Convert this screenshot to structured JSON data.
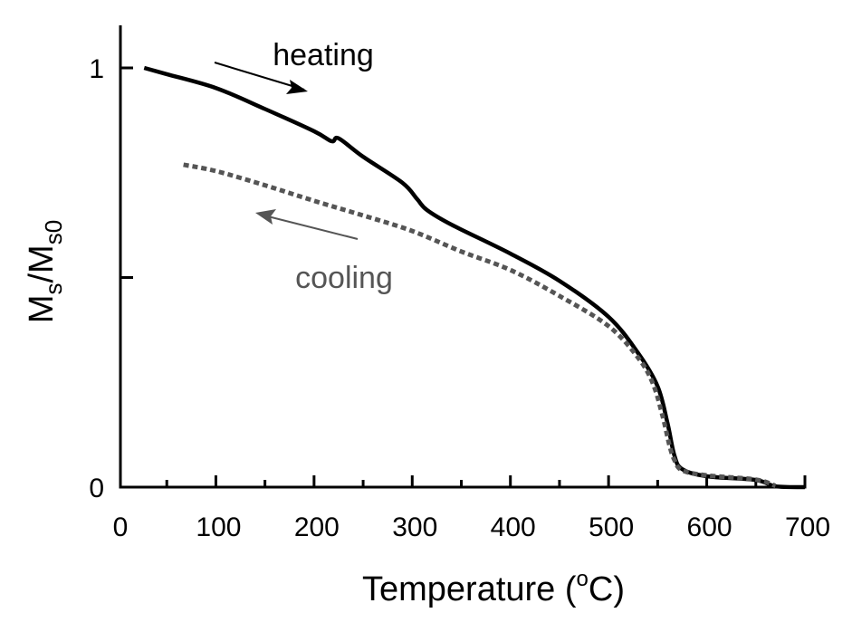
{
  "chart_data": {
    "type": "line",
    "title": "",
    "xlabel": "Temperature (",
    "xlabel_sup": "o",
    "xlabel_unit": "C)",
    "ylabel_parts": {
      "m1": "M",
      "s1": "s",
      "slash": "/M",
      "s2": "s0"
    },
    "xlim": [
      0,
      700
    ],
    "ylim": [
      0,
      1
    ],
    "x_ticks": [
      0,
      100,
      200,
      300,
      400,
      500,
      600,
      700
    ],
    "x_tick_labels": [
      "0",
      "100",
      "200",
      "300",
      "400",
      "500",
      "600",
      "700"
    ],
    "y_ticks": [
      0,
      0.5,
      1
    ],
    "y_tick_labels": [
      "0",
      "",
      "1"
    ],
    "grid": false,
    "series": [
      {
        "name": "heating",
        "color": "#000000",
        "style": "solid",
        "x": [
          27,
          50,
          100,
          150,
          200,
          218,
          225,
          250,
          290,
          305,
          315,
          340,
          400,
          450,
          500,
          530,
          550,
          560,
          567,
          575,
          600,
          650,
          670,
          700
        ],
        "y": [
          1.0,
          0.985,
          0.952,
          0.902,
          0.849,
          0.825,
          0.832,
          0.788,
          0.726,
          0.687,
          0.661,
          0.626,
          0.557,
          0.492,
          0.406,
          0.32,
          0.24,
          0.153,
          0.076,
          0.043,
          0.026,
          0.017,
          0.002,
          0.0
        ]
      },
      {
        "name": "cooling",
        "color": "#555555",
        "style": "dashed",
        "x": [
          67,
          100,
          150,
          200,
          250,
          300,
          350,
          400,
          450,
          500,
          530,
          545,
          555,
          562,
          567,
          575,
          600,
          650,
          670
        ],
        "y": [
          0.769,
          0.754,
          0.72,
          0.683,
          0.648,
          0.611,
          0.562,
          0.518,
          0.456,
          0.384,
          0.309,
          0.248,
          0.17,
          0.1,
          0.065,
          0.04,
          0.028,
          0.018,
          0.003
        ]
      }
    ],
    "annotations": [
      {
        "text": "heating",
        "color": "#000000",
        "arrow": "right-down"
      },
      {
        "text": "cooling",
        "color": "#555555",
        "arrow": "left-up"
      }
    ]
  }
}
